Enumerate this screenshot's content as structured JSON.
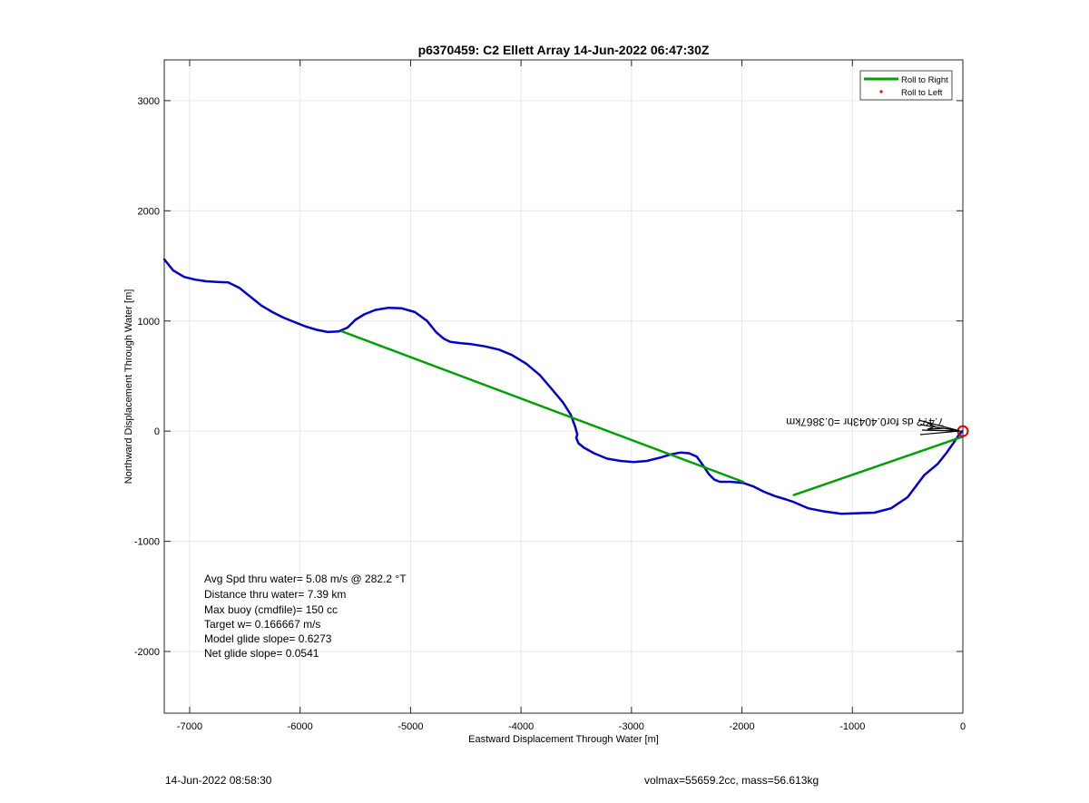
{
  "chart_data": {
    "type": "line",
    "title": "p6370459: C2 Ellett Array 14-Jun-2022 06:47:30Z",
    "xlabel": "Eastward Displacement Through Water [m]",
    "ylabel": "Northward Displacement Through Water [m]",
    "xlim": [
      -7230,
      0
    ],
    "ylim": [
      -2560,
      3370
    ],
    "xticks": [
      -7000,
      -6000,
      -5000,
      -4000,
      -3000,
      -2000,
      -1000,
      0
    ],
    "yticks": [
      -2000,
      -1000,
      0,
      1000,
      2000,
      3000
    ],
    "grid": true,
    "legend_position": "top-right",
    "legend": [
      {
        "label": "Roll to Right",
        "color": "#00a000",
        "style": "line"
      },
      {
        "label": "Roll to Left",
        "color": "#ff0000",
        "style": "dot"
      }
    ],
    "series": [
      {
        "color": "#0000c8",
        "x": [
          -7230,
          -7150,
          -7050,
          -6950,
          -6850,
          -6750,
          -6650,
          -6550,
          -6450,
          -6350,
          -6250,
          -6150,
          -6050,
          -5950,
          -5850,
          -5750,
          -5650,
          -5570,
          -5500,
          -5420,
          -5320,
          -5200,
          -5080,
          -4960,
          -4850,
          -4770,
          -4700,
          -4640,
          -4560,
          -4450,
          -4330,
          -4200,
          -4080,
          -3950,
          -3830,
          -3720,
          -3620,
          -3550,
          -3510,
          -3490,
          -3500,
          -3480,
          -3430,
          -3340,
          -3220,
          -3100,
          -2980,
          -2860,
          -2740,
          -2640,
          -2560,
          -2480,
          -2410,
          -2360,
          -2300,
          -2250,
          -2200,
          -2100,
          -1990,
          -1900,
          -1800,
          -1700,
          -1600,
          -1540,
          -1400,
          -1250,
          -1100,
          -950,
          -800,
          -650,
          -500,
          -350,
          -230,
          -150,
          -80,
          -40,
          -15,
          -5
        ],
        "y": [
          1560,
          1460,
          1400,
          1375,
          1360,
          1355,
          1350,
          1300,
          1220,
          1140,
          1080,
          1030,
          990,
          950,
          920,
          900,
          905,
          940,
          1010,
          1060,
          1100,
          1120,
          1115,
          1080,
          1000,
          900,
          840,
          810,
          800,
          790,
          770,
          740,
          690,
          610,
          510,
          380,
          260,
          150,
          40,
          -30,
          -60,
          -110,
          -150,
          -200,
          -250,
          -270,
          -280,
          -270,
          -240,
          -210,
          -195,
          -200,
          -230,
          -300,
          -390,
          -440,
          -460,
          -460,
          -470,
          -500,
          -550,
          -590,
          -620,
          -640,
          -700,
          -730,
          -750,
          -745,
          -740,
          -700,
          -600,
          -400,
          -300,
          -200,
          -100,
          -40,
          -10,
          0
        ]
      },
      {
        "name": "Roll to Right",
        "color": "#00a000",
        "x": [
          -5620,
          -1990
        ],
        "y": [
          905,
          -460
        ]
      },
      {
        "name": "Roll to Right",
        "color": "#00a000",
        "x": [
          -1530,
          0
        ],
        "y": [
          -580,
          -50
        ]
      }
    ],
    "marker": {
      "x": 0,
      "y": 0,
      "color": "#dd0000"
    },
    "annotation_mirrored": "7.4?? ds for0.4043hr =0.3867km",
    "stats_lines": [
      "Avg Spd thru water=  5.08 m/s @ 282.2 °T",
      "Distance thru water=  7.39 km",
      "Max buoy (cmdfile)= 150 cc",
      "Target w= 0.166667 m/s",
      "Model glide slope= 0.6273",
      "Net glide slope= 0.0541"
    ]
  },
  "footer": {
    "left": "14-Jun-2022 08:58:30",
    "right": "volmax=55659.2cc, mass=56.613kg"
  }
}
